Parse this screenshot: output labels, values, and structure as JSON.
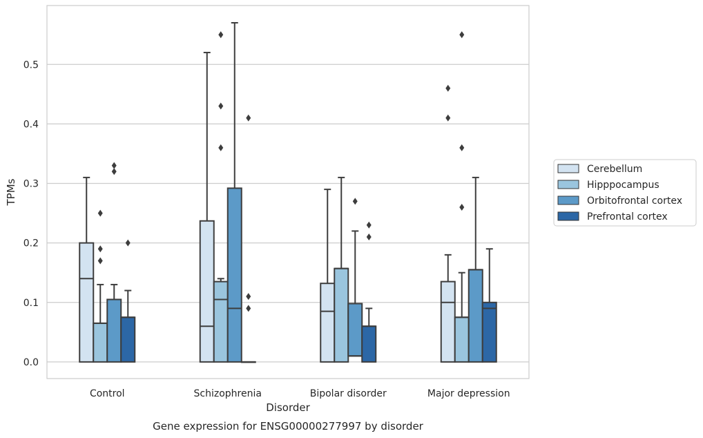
{
  "chart_data": {
    "type": "box",
    "caption": "Gene expression for ENSG00000277997 by disorder",
    "xlabel": "Disorder",
    "ylabel": "TPMs",
    "ylim": [
      -0.028,
      0.599
    ],
    "yticks": [
      "0.0",
      "0.1",
      "0.2",
      "0.3",
      "0.4",
      "0.5"
    ],
    "ytick_values": [
      0.0,
      0.1,
      0.2,
      0.3,
      0.4,
      0.5
    ],
    "grid": "horizontal",
    "legend_position": "right",
    "categories": [
      "Control",
      "Schizophrenia",
      "Bipolar disorder",
      "Major depression"
    ],
    "series": [
      {
        "name": "Cerebellum",
        "color": "#d3e3f1",
        "boxes": [
          {
            "whisker_low": 0.0,
            "q1": 0.0,
            "median": 0.14,
            "q3": 0.2,
            "whisker_high": 0.31,
            "outliers": []
          },
          {
            "whisker_low": 0.0,
            "q1": 0.0,
            "median": 0.06,
            "q3": 0.237,
            "whisker_high": 0.52,
            "outliers": []
          },
          {
            "whisker_low": 0.0,
            "q1": 0.0,
            "median": 0.085,
            "q3": 0.132,
            "whisker_high": 0.29,
            "outliers": []
          },
          {
            "whisker_low": 0.0,
            "q1": 0.0,
            "median": 0.1,
            "q3": 0.135,
            "whisker_high": 0.18,
            "outliers": [
              0.41,
              0.46
            ]
          }
        ]
      },
      {
        "name": "Hipppocampus",
        "color": "#9ac5de",
        "boxes": [
          {
            "whisker_low": 0.0,
            "q1": 0.0,
            "median": 0.065,
            "q3": 0.065,
            "whisker_high": 0.13,
            "outliers": [
              0.17,
              0.19,
              0.25
            ]
          },
          {
            "whisker_low": 0.0,
            "q1": 0.0,
            "median": 0.105,
            "q3": 0.135,
            "whisker_high": 0.14,
            "outliers": [
              0.36,
              0.43,
              0.55
            ]
          },
          {
            "whisker_low": 0.0,
            "q1": 0.0,
            "median": 0.157,
            "q3": 0.157,
            "whisker_high": 0.31,
            "outliers": []
          },
          {
            "whisker_low": 0.0,
            "q1": 0.0,
            "median": 0.075,
            "q3": 0.075,
            "whisker_high": 0.15,
            "outliers": [
              0.26,
              0.36,
              0.55
            ]
          }
        ]
      },
      {
        "name": "Orbitofrontal cortex",
        "color": "#5c9ac8",
        "boxes": [
          {
            "whisker_low": 0.0,
            "q1": 0.0,
            "median": 0.105,
            "q3": 0.105,
            "whisker_high": 0.13,
            "outliers": [
              0.32,
              0.33
            ]
          },
          {
            "whisker_low": 0.0,
            "q1": 0.0,
            "median": 0.09,
            "q3": 0.292,
            "whisker_high": 0.57,
            "outliers": []
          },
          {
            "whisker_low": 0.0,
            "q1": 0.01,
            "median": 0.01,
            "q3": 0.098,
            "whisker_high": 0.22,
            "outliers": [
              0.27
            ]
          },
          {
            "whisker_low": 0.0,
            "q1": 0.0,
            "median": 0.155,
            "q3": 0.155,
            "whisker_high": 0.31,
            "outliers": []
          }
        ]
      },
      {
        "name": "Prefrontal cortex",
        "color": "#2c67a6",
        "boxes": [
          {
            "whisker_low": 0.0,
            "q1": 0.0,
            "median": 0.075,
            "q3": 0.075,
            "whisker_high": 0.12,
            "outliers": [
              0.2
            ]
          },
          {
            "whisker_low": 0.0,
            "q1": 0.0,
            "median": 0.0,
            "q3": 0.0,
            "whisker_high": 0.0,
            "outliers": [
              0.09,
              0.11,
              0.41
            ]
          },
          {
            "whisker_low": 0.0,
            "q1": 0.0,
            "median": 0.06,
            "q3": 0.06,
            "whisker_high": 0.09,
            "outliers": [
              0.21,
              0.23
            ]
          },
          {
            "whisker_low": 0.0,
            "q1": 0.0,
            "median": 0.09,
            "q3": 0.1,
            "whisker_high": 0.19,
            "outliers": []
          }
        ]
      }
    ]
  }
}
